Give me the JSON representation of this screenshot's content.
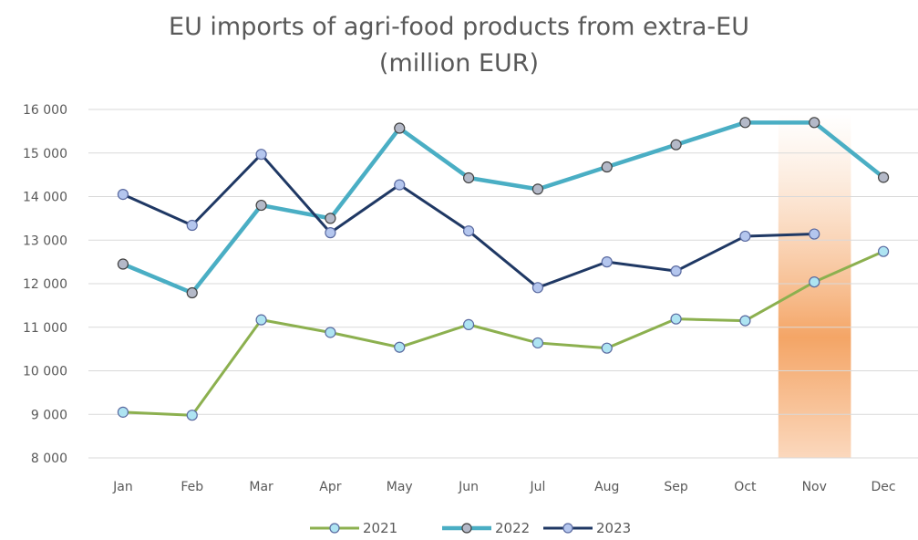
{
  "chart_data": {
    "type": "line",
    "title": "EU imports of agri-food products from extra-EU",
    "subtitle": "(million EUR)",
    "categories": [
      "Jan",
      "Feb",
      "Mar",
      "Apr",
      "May",
      "Jun",
      "Jul",
      "Aug",
      "Sep",
      "Oct",
      "Nov",
      "Dec"
    ],
    "ylim": [
      8000,
      16000
    ],
    "yticks": [
      8000,
      9000,
      10000,
      11000,
      12000,
      13000,
      14000,
      15000,
      16000
    ],
    "ytick_labels": [
      "8 000",
      "9 000",
      "10 000",
      "11 000",
      "12 000",
      "13 000",
      "14 000",
      "15 000",
      "16 000"
    ],
    "grid": true,
    "legend": "bottom",
    "highlight_category": "Nov",
    "series": [
      {
        "name": "2021",
        "color": "#8cb04f",
        "marker_fill": "#aee4f2",
        "values": [
          9050,
          8980,
          11170,
          10880,
          10540,
          11060,
          10640,
          10520,
          11190,
          11150,
          12040,
          12740
        ]
      },
      {
        "name": "2022",
        "color": "#4aaec4",
        "marker_fill": "#b4b9c8",
        "values": [
          12450,
          11790,
          13800,
          13500,
          15570,
          14430,
          14170,
          14680,
          15190,
          15700,
          15700,
          14440
        ]
      },
      {
        "name": "2023",
        "color": "#1f3864",
        "marker_fill": "#b4c6ee",
        "values": [
          14050,
          13340,
          14970,
          13170,
          14270,
          13210,
          11910,
          12500,
          12290,
          13090,
          13140,
          null
        ]
      }
    ]
  }
}
